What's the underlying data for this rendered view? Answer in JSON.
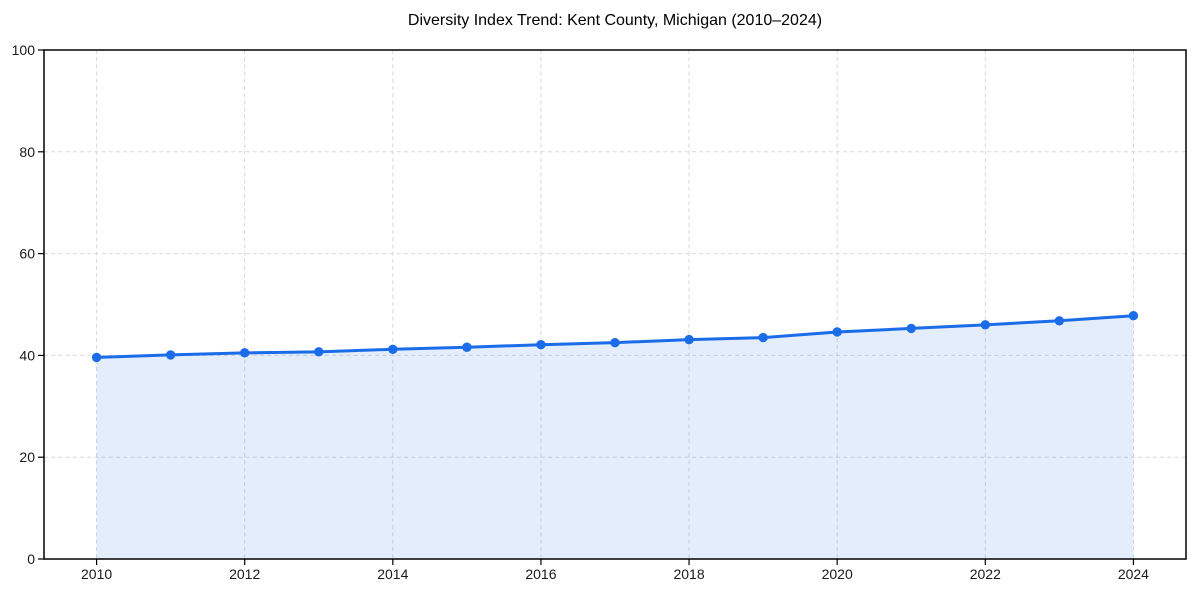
{
  "chart_data": {
    "type": "area",
    "title": "Diversity Index Trend: Kent County, Michigan (2010–2024)",
    "series_name": "Diversity Index",
    "x": [
      2010,
      2011,
      2012,
      2013,
      2014,
      2015,
      2016,
      2017,
      2018,
      2019,
      2020,
      2021,
      2022,
      2023,
      2024
    ],
    "values": [
      39.6,
      40.1,
      40.5,
      40.7,
      41.2,
      41.6,
      42.1,
      42.5,
      43.1,
      43.5,
      44.6,
      45.3,
      46.0,
      46.8,
      47.8
    ],
    "xlabel": "",
    "ylabel": "",
    "ylim": [
      0,
      100
    ],
    "x_range": [
      2009.29,
      2024.71
    ],
    "yticks": [
      0,
      20,
      40,
      60,
      80,
      100
    ],
    "xticks": [
      2010,
      2012,
      2014,
      2016,
      2018,
      2020,
      2022,
      2024
    ],
    "grid": "dashed, both axes",
    "legend_position": "none",
    "colors": {
      "line": "#1a6ce8",
      "fill": "rgba(26,108,232,0.12)",
      "grid": "#d9d9d9",
      "spine": "#000000",
      "tick_label": "#1a1a1a",
      "title": "#000000",
      "background": "#ffffff"
    }
  }
}
